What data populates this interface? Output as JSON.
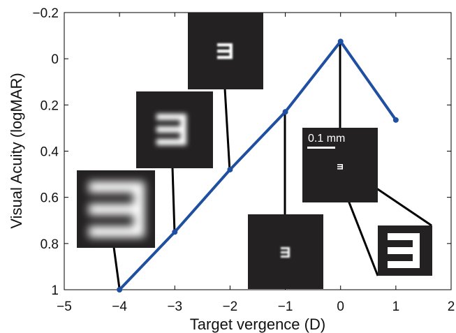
{
  "chart_data": {
    "type": "line",
    "xlabel": "Target vergence (D)",
    "ylabel": "Visual Acuity (logMAR)",
    "xlim": [
      -5,
      2
    ],
    "ylim": [
      -0.2,
      1
    ],
    "y_inverted": true,
    "grid": false,
    "x_ticks": [
      "−5",
      "−4",
      "−3",
      "−2",
      "−1",
      "0",
      "1",
      "2"
    ],
    "y_ticks": [
      "−0.2",
      "0",
      "0.2",
      "0.4",
      "0.6",
      "0.8",
      "1"
    ],
    "series": [
      {
        "x": [
          -4,
          -3,
          -2,
          -1,
          0,
          1
        ],
        "y": [
          1.0,
          0.75,
          0.48,
          0.23,
          -0.075,
          0.265
        ]
      }
    ],
    "annotations": {
      "scale_bar_label": "0.1 mm"
    },
    "colors": {
      "line": "#1f4fa0",
      "inset_bg": "#232121",
      "inset_glyph": "#ffffff",
      "connector": "#000000"
    }
  }
}
